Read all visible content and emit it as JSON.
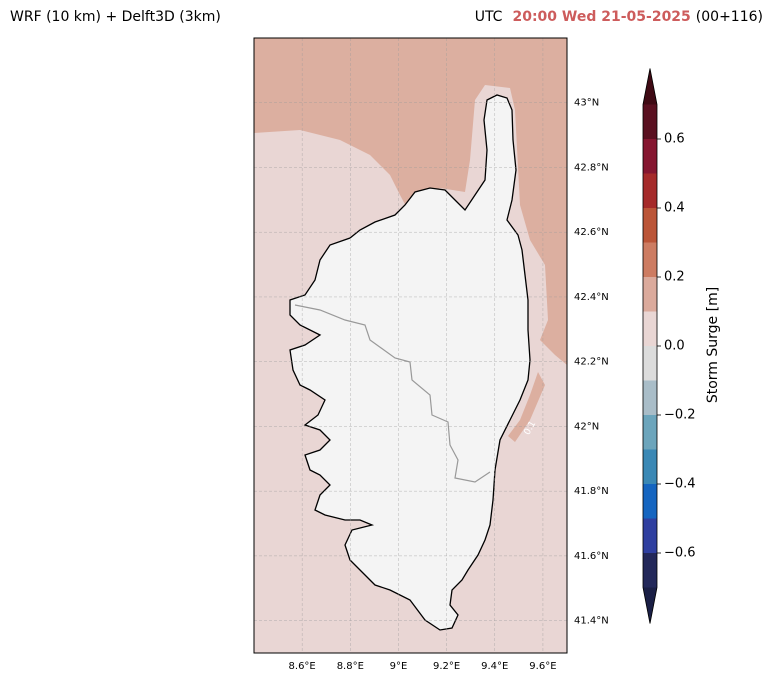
{
  "title": "WRF (10 km) + Delft3D (3km)",
  "time": {
    "prefix": "UTC",
    "datetime": "20:00 Wed 21-05-2025",
    "lead": "(00+116)"
  },
  "map": {
    "xlim": [
      8.4,
      9.7
    ],
    "ylim": [
      41.3,
      43.2
    ],
    "lon_ticks": [
      {
        "value": 8.6,
        "label": "8.6°E"
      },
      {
        "value": 8.8,
        "label": "8.8°E"
      },
      {
        "value": 9.0,
        "label": "9°E"
      },
      {
        "value": 9.2,
        "label": "9.2°E"
      },
      {
        "value": 9.4,
        "label": "9.4°E"
      },
      {
        "value": 9.6,
        "label": "9.6°E"
      }
    ],
    "lat_ticks": [
      {
        "value": 43.0,
        "label": "43°N"
      },
      {
        "value": 42.8,
        "label": "42.8°N"
      },
      {
        "value": 42.6,
        "label": "42.6°N"
      },
      {
        "value": 42.4,
        "label": "42.4°N"
      },
      {
        "value": 42.2,
        "label": "42.2°N"
      },
      {
        "value": 42.0,
        "label": "42°N"
      },
      {
        "value": 41.8,
        "label": "41.8°N"
      },
      {
        "value": 41.6,
        "label": "41.6°N"
      },
      {
        "value": 41.4,
        "label": "41.4°N"
      }
    ],
    "contour_label": "0.1"
  },
  "colorbar": {
    "label": "Storm Surge [m]",
    "lim": [
      -0.7,
      0.7
    ],
    "ticks": [
      0.6,
      0.4,
      0.2,
      {
        "value": 0,
        "label": "0.0"
      },
      {
        "value": -0.2,
        "label": "−0.2"
      },
      {
        "value": -0.4,
        "label": "−0.4"
      },
      {
        "value": -0.6,
        "label": "−0.6"
      }
    ],
    "levels": [
      -0.7,
      -0.6,
      -0.5,
      -0.4,
      -0.3,
      -0.2,
      -0.1,
      0,
      0.1,
      0.2,
      0.3,
      0.4,
      0.5,
      0.6,
      0.7
    ],
    "colors": [
      "#23285a",
      "#2f3fa0",
      "#1565c0",
      "#3a88b5",
      "#6ca5bc",
      "#a9bdc8",
      "#dcdcdc",
      "#e9d6d4",
      "#dbaa9c",
      "#cd7c62",
      "#bb5538",
      "#a52a2a",
      "#851630",
      "#5a1020"
    ],
    "under": "#1a1f45",
    "over": "#3f0a14"
  }
}
